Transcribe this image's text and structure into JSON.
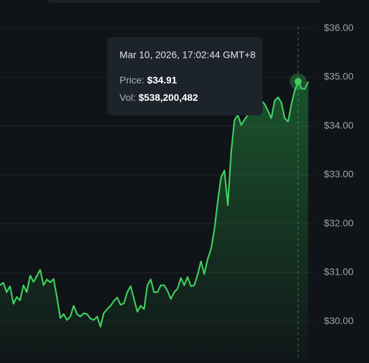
{
  "chart_data": {
    "type": "line",
    "color": "#3fcf5f",
    "grid": true,
    "ylim": [
      29.22,
      36.58
    ],
    "yticks": [
      {
        "value": 36,
        "label": "$36.00"
      },
      {
        "value": 35,
        "label": "$35.00"
      },
      {
        "value": 34,
        "label": "$34.00"
      },
      {
        "value": 33,
        "label": "$33.00"
      },
      {
        "value": 32,
        "label": "$32.00"
      },
      {
        "value": 31,
        "label": "$31.00"
      },
      {
        "value": 30,
        "label": "$30.00"
      }
    ],
    "values": [
      30.74,
      30.79,
      30.6,
      30.72,
      30.36,
      30.5,
      30.43,
      30.74,
      30.6,
      30.94,
      30.81,
      30.93,
      31.06,
      30.74,
      30.86,
      30.8,
      30.87,
      30.5,
      30.07,
      30.15,
      30.03,
      30.1,
      30.32,
      30.15,
      30.1,
      30.17,
      30.15,
      30.06,
      30.03,
      30.1,
      29.89,
      30.17,
      30.25,
      30.32,
      30.42,
      30.49,
      30.34,
      30.37,
      30.6,
      30.72,
      30.46,
      30.2,
      30.32,
      30.25,
      30.74,
      30.86,
      30.6,
      30.6,
      30.74,
      30.74,
      30.63,
      30.46,
      30.6,
      30.67,
      30.89,
      30.74,
      30.91,
      30.72,
      30.74,
      30.96,
      31.23,
      30.97,
      31.28,
      31.48,
      31.88,
      32.45,
      32.95,
      33.09,
      32.38,
      33.45,
      34.12,
      34.23,
      34.02,
      34.13,
      34.23,
      34.31,
      34.45,
      34.38,
      34.52,
      34.45,
      34.31,
      34.16,
      34.52,
      34.59,
      34.48,
      34.16,
      34.09,
      34.45,
      34.73,
      34.91,
      34.77,
      34.76,
      34.91
    ],
    "highlight": 89,
    "tooltip": {
      "date": "Mar 10, 2026, 17:02:44 GMT+8",
      "price_label": "Price:",
      "price": "$34.91",
      "vol_label": "Vol:",
      "vol": "$538,200,482"
    }
  }
}
